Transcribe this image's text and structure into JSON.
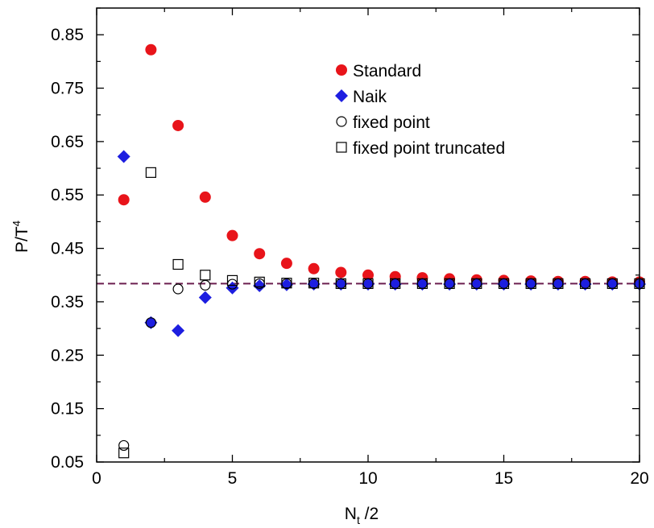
{
  "chart_data": {
    "type": "scatter",
    "xlabel": "N",
    "xlabel_subscript": "t",
    "xlabel_suffix": " /2",
    "ylabel": "P/T",
    "ylabel_superscript": "4",
    "xlim": [
      0,
      20
    ],
    "ylim": [
      0.05,
      0.9
    ],
    "xticks": [
      0,
      5,
      10,
      15,
      20
    ],
    "xtick_labels": [
      "0",
      "5",
      "10",
      "15",
      "20"
    ],
    "yticks": [
      0.05,
      0.15,
      0.25,
      0.35,
      0.45,
      0.55,
      0.65,
      0.75,
      0.85
    ],
    "ytick_labels": [
      "0.05",
      "0.15",
      "0.25",
      "0.35",
      "0.45",
      "0.55",
      "0.65",
      "0.75",
      "0.85"
    ],
    "grid": false,
    "legend_position": "top-right",
    "reference_line": {
      "y": 0.384,
      "style": "dashed",
      "color": "#6b1f4f"
    },
    "series": [
      {
        "name": "Standard",
        "marker": "filled-circle",
        "color": "#e8141a",
        "x": [
          1,
          2,
          3,
          4,
          5,
          6,
          7,
          8,
          9,
          10,
          11,
          12,
          13,
          14,
          15,
          16,
          17,
          18,
          19,
          20
        ],
        "y": [
          0.541,
          0.822,
          0.68,
          0.546,
          0.474,
          0.44,
          0.422,
          0.412,
          0.405,
          0.4,
          0.397,
          0.395,
          0.393,
          0.391,
          0.39,
          0.389,
          0.388,
          0.388,
          0.387,
          0.387
        ]
      },
      {
        "name": "Naik",
        "marker": "filled-diamond",
        "color": "#1d1ee0",
        "x": [
          1,
          2,
          3,
          4,
          5,
          6,
          7,
          8,
          9,
          10,
          11,
          12,
          13,
          14,
          15,
          16,
          17,
          18,
          19,
          20
        ],
        "y": [
          0.622,
          0.311,
          0.296,
          0.358,
          0.376,
          0.38,
          0.382,
          0.383,
          0.383,
          0.383,
          0.383,
          0.383,
          0.383,
          0.383,
          0.383,
          0.383,
          0.383,
          0.383,
          0.383,
          0.383
        ]
      },
      {
        "name": "fixed point",
        "marker": "open-circle",
        "color": "#000000",
        "x": [
          1,
          2,
          3,
          4,
          5,
          6,
          7,
          8,
          9,
          10,
          11,
          12,
          13,
          14,
          15,
          16,
          17,
          18,
          19,
          20
        ],
        "y": [
          0.081,
          0.311,
          0.374,
          0.381,
          0.383,
          0.384,
          0.384,
          0.384,
          0.384,
          0.384,
          0.384,
          0.384,
          0.384,
          0.384,
          0.384,
          0.384,
          0.384,
          0.384,
          0.384,
          0.384
        ]
      },
      {
        "name": "fixed point truncated",
        "marker": "open-square",
        "color": "#000000",
        "x": [
          1,
          2,
          3,
          4,
          5,
          6,
          7,
          8,
          9,
          10,
          11,
          12,
          13,
          14,
          15,
          16,
          17,
          18,
          19,
          20
        ],
        "y": [
          0.067,
          0.592,
          0.42,
          0.4,
          0.39,
          0.387,
          0.385,
          0.385,
          0.384,
          0.384,
          0.384,
          0.384,
          0.384,
          0.384,
          0.384,
          0.384,
          0.384,
          0.384,
          0.384,
          0.384
        ]
      }
    ]
  }
}
